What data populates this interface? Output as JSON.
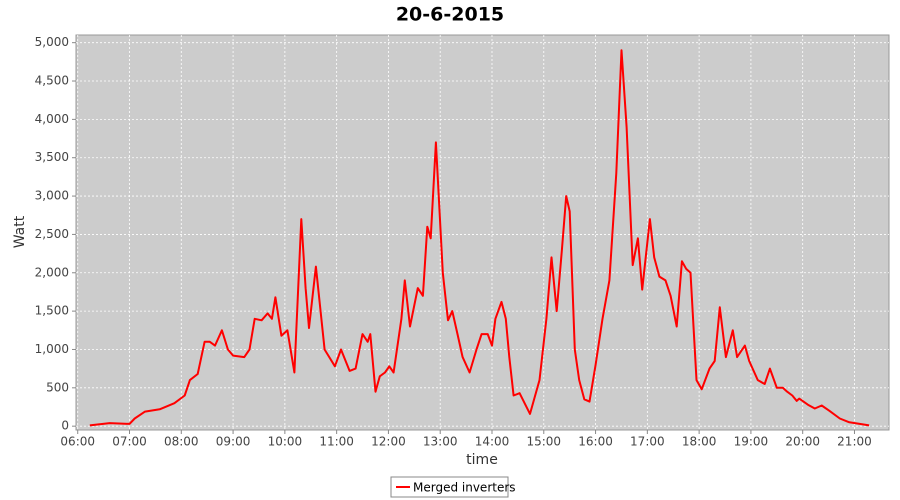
{
  "chart_data": {
    "type": "line",
    "title": "20-6-2015",
    "x_label": "time",
    "y_label": "Watt",
    "x": [
      "06:14",
      "06:37",
      "07:00",
      "07:06",
      "07:18",
      "07:35",
      "07:52",
      "08:04",
      "08:10",
      "08:19",
      "08:27",
      "08:33",
      "08:39",
      "08:47",
      "08:54",
      "09:00",
      "09:13",
      "09:19",
      "09:25",
      "09:33",
      "09:40",
      "09:45",
      "09:49",
      "09:56",
      "10:03",
      "10:11",
      "10:19",
      "10:24",
      "10:28",
      "10:36",
      "10:46",
      "10:58",
      "11:05",
      "11:15",
      "11:22",
      "11:30",
      "11:36",
      "11:39",
      "11:45",
      "11:50",
      "11:56",
      "12:01",
      "12:06",
      "12:15",
      "12:19",
      "12:25",
      "12:34",
      "12:40",
      "12:45",
      "12:49",
      "12:55",
      "13:03",
      "13:09",
      "13:14",
      "13:20",
      "13:26",
      "13:34",
      "13:42",
      "13:48",
      "13:55",
      "14:00",
      "14:04",
      "14:11",
      "14:16",
      "14:20",
      "14:25",
      "14:32",
      "14:44",
      "14:55",
      "15:03",
      "15:09",
      "15:15",
      "15:21",
      "15:26",
      "15:30",
      "15:36",
      "15:41",
      "15:47",
      "15:53",
      "16:00",
      "16:08",
      "16:16",
      "16:24",
      "16:30",
      "16:36",
      "16:43",
      "16:49",
      "16:54",
      "17:03",
      "17:08",
      "17:14",
      "17:21",
      "17:27",
      "17:34",
      "17:40",
      "17:45",
      "17:50",
      "17:57",
      "18:03",
      "18:12",
      "18:18",
      "18:24",
      "18:31",
      "18:39",
      "18:44",
      "18:53",
      "18:58",
      "19:08",
      "19:16",
      "19:22",
      "19:30",
      "19:37",
      "19:42",
      "19:48",
      "19:53",
      "19:56",
      "20:06",
      "20:14",
      "20:22",
      "20:31",
      "20:43",
      "20:54",
      "21:06",
      "21:17"
    ],
    "series": [
      {
        "name": "Merged inverters",
        "color": "#ff0000",
        "values": [
          10,
          40,
          30,
          100,
          190,
          220,
          300,
          400,
          600,
          680,
          1100,
          1100,
          1050,
          1250,
          1000,
          920,
          900,
          1000,
          1400,
          1380,
          1470,
          1400,
          1680,
          1180,
          1250,
          700,
          2700,
          1800,
          1280,
          2080,
          1000,
          780,
          1000,
          720,
          750,
          1200,
          1100,
          1200,
          450,
          650,
          700,
          780,
          700,
          1400,
          1900,
          1300,
          1800,
          1700,
          2600,
          2450,
          3700,
          2000,
          1380,
          1500,
          1200,
          900,
          700,
          1000,
          1200,
          1200,
          1050,
          1400,
          1620,
          1400,
          900,
          400,
          430,
          160,
          600,
          1400,
          2200,
          1500,
          2300,
          3000,
          2800,
          1000,
          600,
          350,
          320,
          800,
          1400,
          1900,
          3300,
          4900,
          3900,
          2100,
          2450,
          1780,
          2700,
          2200,
          1950,
          1900,
          1700,
          1300,
          2150,
          2050,
          2000,
          600,
          480,
          750,
          850,
          1550,
          900,
          1250,
          900,
          1050,
          850,
          600,
          550,
          750,
          500,
          500,
          450,
          400,
          330,
          360,
          280,
          230,
          270,
          200,
          100,
          50,
          30,
          10
        ]
      }
    ],
    "xlim": [
      "05:58",
      "21:40"
    ],
    "xticks": [
      "06:00",
      "07:00",
      "08:00",
      "09:00",
      "10:00",
      "11:00",
      "12:00",
      "13:00",
      "14:00",
      "15:00",
      "16:00",
      "17:00",
      "18:00",
      "19:00",
      "20:00",
      "21:00"
    ],
    "ylim": [
      -50,
      5100
    ],
    "yticks": [
      0,
      500,
      {
        "value": 1000,
        "label": "1,000"
      },
      {
        "value": 1500,
        "label": "1,500"
      },
      {
        "value": 2000,
        "label": "2,000"
      },
      {
        "value": 2500,
        "label": "2,500"
      },
      {
        "value": 3000,
        "label": "3,000"
      },
      {
        "value": 3500,
        "label": "3,500"
      },
      {
        "value": 4000,
        "label": "4,000"
      },
      {
        "value": 4500,
        "label": "4,500"
      },
      {
        "value": 5000,
        "label": "5,000"
      }
    ],
    "grid": true,
    "legend": "bottom"
  }
}
